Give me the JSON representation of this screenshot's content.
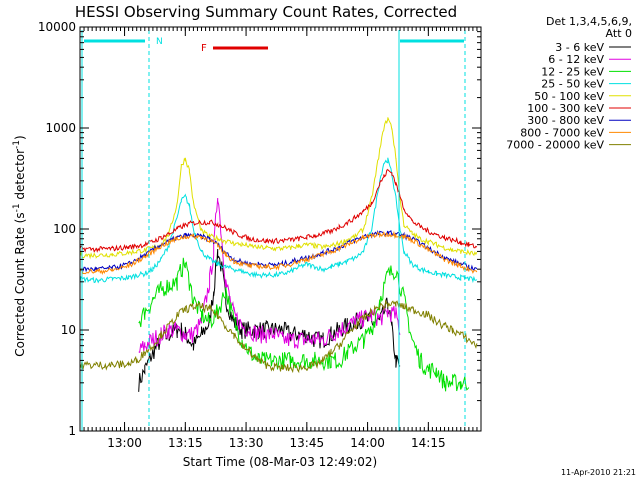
{
  "chart_data": {
    "type": "line",
    "title": "HESSI Observing Summary Count Rates, Corrected",
    "xlabel": "Start Time (08-Mar-03 12:49:02)",
    "ylabel_main": "Corrected Count Rate (s",
    "ylabel_sup1": "-1",
    "ylabel_mid": " detector",
    "ylabel_sup2": "-1",
    "ylabel_end": ")",
    "yscale": "log",
    "ylim": [
      1,
      10000
    ],
    "xlim_minutes": [
      0,
      99
    ],
    "x_ticks": [
      {
        "label": "13:00",
        "minute": 11
      },
      {
        "label": "13:15",
        "minute": 26
      },
      {
        "label": "13:30",
        "minute": 41
      },
      {
        "label": "13:45",
        "minute": 56
      },
      {
        "label": "14:00",
        "minute": 71
      },
      {
        "label": "14:15",
        "minute": 86
      }
    ],
    "y_ticks": [
      {
        "label": "1",
        "value": 1
      },
      {
        "label": "10",
        "value": 10
      },
      {
        "label": "100",
        "value": 100
      },
      {
        "label": "1000",
        "value": 1000
      },
      {
        "label": "10000",
        "value": 10000
      }
    ],
    "legend_header": [
      "Det 1,3,4,5,6,9,",
      "Att 0"
    ],
    "legend_position": "top-right",
    "footer": "11-Apr-2010 21:21",
    "series": [
      {
        "name": "3 - 6 keV",
        "color": "#000000",
        "x": [
          0,
          14,
          14.5,
          16,
          18,
          20,
          22,
          24,
          25,
          26,
          27,
          28,
          30,
          32,
          33,
          34,
          35,
          36,
          38,
          40,
          42,
          44,
          46,
          48,
          50,
          52,
          54,
          56,
          58,
          60,
          62,
          64,
          66,
          68,
          70,
          72,
          74,
          76,
          77,
          78,
          79,
          80
        ],
        "y": [
          null,
          null,
          3,
          4,
          6,
          8,
          9,
          10,
          10,
          9,
          8,
          7,
          9,
          12,
          25,
          60,
          40,
          20,
          12,
          10,
          10,
          10,
          10,
          10,
          10,
          9,
          9,
          9,
          8,
          8,
          9,
          10,
          11,
          12,
          13,
          12,
          12,
          18,
          10,
          5,
          4,
          null
        ]
      },
      {
        "name": "6 - 12 keV",
        "color": "#e000e0",
        "x": [
          0,
          14,
          14.5,
          16,
          18,
          20,
          22,
          24,
          26,
          28,
          30,
          32,
          33,
          34,
          35,
          36,
          37,
          38,
          40,
          42,
          44,
          46,
          48,
          50,
          52,
          54,
          56,
          58,
          60,
          62,
          64,
          66,
          68,
          70,
          72,
          74,
          76,
          78,
          79,
          80
        ],
        "y": [
          null,
          null,
          6,
          7,
          8,
          9,
          10,
          10,
          9,
          9,
          12,
          30,
          60,
          230,
          80,
          30,
          20,
          14,
          11,
          10,
          9,
          9,
          9,
          8,
          8,
          8,
          8,
          8,
          8,
          9,
          10,
          11,
          12,
          13,
          14,
          13,
          15,
          14,
          10,
          null
        ]
      },
      {
        "name": "12 - 25 keV",
        "color": "#00e000",
        "x": [
          0,
          14,
          14.5,
          16,
          18,
          20,
          22,
          24,
          25,
          26,
          27,
          28,
          30,
          32,
          34,
          36,
          38,
          40,
          42,
          44,
          46,
          48,
          50,
          52,
          54,
          56,
          58,
          60,
          62,
          64,
          66,
          68,
          70,
          72,
          74,
          76,
          78,
          80,
          82,
          84,
          86,
          88,
          90,
          92,
          94,
          96
        ],
        "y": [
          null,
          null,
          12,
          15,
          20,
          25,
          28,
          30,
          40,
          45,
          30,
          20,
          14,
          12,
          15,
          25,
          12,
          8,
          6,
          5,
          5,
          5,
          5,
          5,
          5,
          5,
          5,
          5,
          5,
          5,
          6,
          7,
          8,
          10,
          20,
          35,
          40,
          20,
          8,
          5,
          4,
          4,
          3,
          3,
          3,
          3
        ]
      },
      {
        "name": "25 - 50 keV",
        "color": "#00e0e0",
        "x": [
          0,
          4,
          8,
          12,
          14,
          16,
          18,
          20,
          22,
          24,
          25,
          26,
          27,
          28,
          30,
          32,
          34,
          36,
          38,
          40,
          42,
          44,
          46,
          48,
          50,
          52,
          54,
          56,
          58,
          60,
          62,
          64,
          66,
          68,
          70,
          72,
          74,
          75,
          76,
          77,
          78,
          79,
          80,
          82,
          84,
          86,
          88,
          90,
          92,
          94,
          96,
          98
        ],
        "y": [
          32,
          31,
          32,
          33,
          35,
          36,
          40,
          50,
          70,
          130,
          190,
          210,
          170,
          100,
          60,
          50,
          45,
          42,
          40,
          38,
          36,
          35,
          35,
          35,
          36,
          38,
          42,
          45,
          42,
          40,
          42,
          45,
          48,
          52,
          60,
          100,
          300,
          450,
          480,
          350,
          200,
          100,
          60,
          45,
          40,
          38,
          36,
          35,
          34,
          33,
          32,
          31
        ]
      },
      {
        "name": "50 - 100 keV",
        "color": "#e0e000",
        "x": [
          0,
          4,
          8,
          12,
          14,
          16,
          18,
          20,
          22,
          24,
          25,
          26,
          27,
          28,
          30,
          32,
          34,
          36,
          38,
          40,
          42,
          44,
          46,
          48,
          50,
          52,
          54,
          56,
          58,
          60,
          62,
          64,
          66,
          68,
          70,
          72,
          74,
          75,
          76,
          77,
          78,
          79,
          80,
          82,
          84,
          86,
          88,
          90,
          92,
          94,
          96,
          98
        ],
        "y": [
          55,
          55,
          56,
          58,
          60,
          62,
          65,
          70,
          90,
          180,
          420,
          500,
          380,
          180,
          95,
          85,
          80,
          76,
          72,
          70,
          68,
          66,
          65,
          64,
          64,
          65,
          68,
          70,
          68,
          66,
          68,
          72,
          78,
          85,
          100,
          200,
          600,
          1000,
          1250,
          1000,
          500,
          200,
          110,
          90,
          80,
          75,
          70,
          65,
          62,
          60,
          58,
          56
        ]
      },
      {
        "name": "100 - 300 keV",
        "color": "#e00000",
        "x": [
          0,
          4,
          8,
          12,
          14,
          16,
          18,
          20,
          22,
          24,
          26,
          28,
          30,
          32,
          34,
          36,
          38,
          40,
          42,
          44,
          46,
          48,
          50,
          52,
          54,
          56,
          58,
          60,
          62,
          64,
          66,
          68,
          70,
          72,
          74,
          75,
          76,
          77,
          78,
          80,
          82,
          84,
          86,
          88,
          90,
          92,
          94,
          96,
          98
        ],
        "y": [
          64,
          63,
          64,
          66,
          68,
          70,
          75,
          82,
          90,
          100,
          110,
          115,
          116,
          117,
          112,
          102,
          92,
          85,
          80,
          78,
          76,
          76,
          77,
          78,
          80,
          83,
          86,
          90,
          95,
          105,
          115,
          130,
          150,
          180,
          280,
          330,
          380,
          360,
          280,
          160,
          120,
          105,
          95,
          88,
          82,
          78,
          74,
          70,
          66
        ]
      },
      {
        "name": "300 - 800 keV",
        "color": "#0000c0",
        "x": [
          0,
          4,
          8,
          12,
          16,
          20,
          24,
          26,
          28,
          30,
          32,
          34,
          36,
          38,
          40,
          42,
          44,
          46,
          48,
          50,
          52,
          54,
          56,
          58,
          60,
          62,
          64,
          66,
          68,
          70,
          72,
          74,
          76,
          78,
          80,
          82,
          84,
          86,
          88,
          90,
          92,
          94,
          96,
          98
        ],
        "y": [
          40,
          40,
          41,
          45,
          55,
          70,
          82,
          86,
          86,
          84,
          80,
          70,
          58,
          50,
          47,
          45,
          45,
          44,
          44,
          45,
          47,
          50,
          52,
          55,
          58,
          62,
          66,
          72,
          78,
          84,
          88,
          90,
          91,
          90,
          86,
          80,
          72,
          64,
          58,
          52,
          48,
          45,
          42,
          40
        ]
      },
      {
        "name": "800 - 7000 keV",
        "color": "#ff8800",
        "x": [
          0,
          4,
          8,
          12,
          16,
          20,
          24,
          26,
          28,
          30,
          32,
          34,
          36,
          38,
          40,
          42,
          44,
          46,
          48,
          50,
          52,
          54,
          56,
          58,
          60,
          62,
          64,
          66,
          68,
          70,
          72,
          74,
          76,
          78,
          80,
          82,
          84,
          86,
          88,
          90,
          92,
          94,
          96,
          98
        ],
        "y": [
          38,
          38,
          39,
          43,
          53,
          68,
          80,
          84,
          85,
          83,
          78,
          68,
          56,
          48,
          45,
          43,
          43,
          42,
          42,
          43,
          45,
          48,
          50,
          53,
          56,
          60,
          64,
          70,
          76,
          82,
          86,
          88,
          89,
          88,
          84,
          78,
          70,
          62,
          56,
          50,
          46,
          43,
          40,
          38
        ]
      },
      {
        "name": "7000 - 20000 keV",
        "color": "#808000",
        "x": [
          0,
          4,
          8,
          12,
          14,
          16,
          18,
          20,
          22,
          24,
          26,
          28,
          30,
          32,
          34,
          36,
          38,
          40,
          42,
          44,
          46,
          48,
          50,
          52,
          54,
          56,
          58,
          60,
          62,
          64,
          66,
          68,
          70,
          72,
          74,
          76,
          78,
          80,
          82,
          84,
          86,
          88,
          90,
          92,
          94,
          96,
          98
        ],
        "y": [
          4.5,
          4.5,
          4.5,
          4.6,
          5,
          6,
          7,
          9,
          11,
          14,
          16,
          17,
          17,
          16,
          14,
          11,
          9,
          7,
          6,
          5,
          4.5,
          4.3,
          4.2,
          4.2,
          4.2,
          4.3,
          4.5,
          5,
          6,
          7,
          9,
          11,
          13,
          15,
          17,
          18,
          18,
          17,
          16,
          15,
          14,
          12,
          11,
          10,
          9,
          8,
          7
        ]
      }
    ],
    "annotations": [
      {
        "label": "N",
        "color": "#00e0e0",
        "type": "night-bar"
      },
      {
        "label": "F",
        "color": "#e00000",
        "type": "flare-bar"
      }
    ]
  }
}
